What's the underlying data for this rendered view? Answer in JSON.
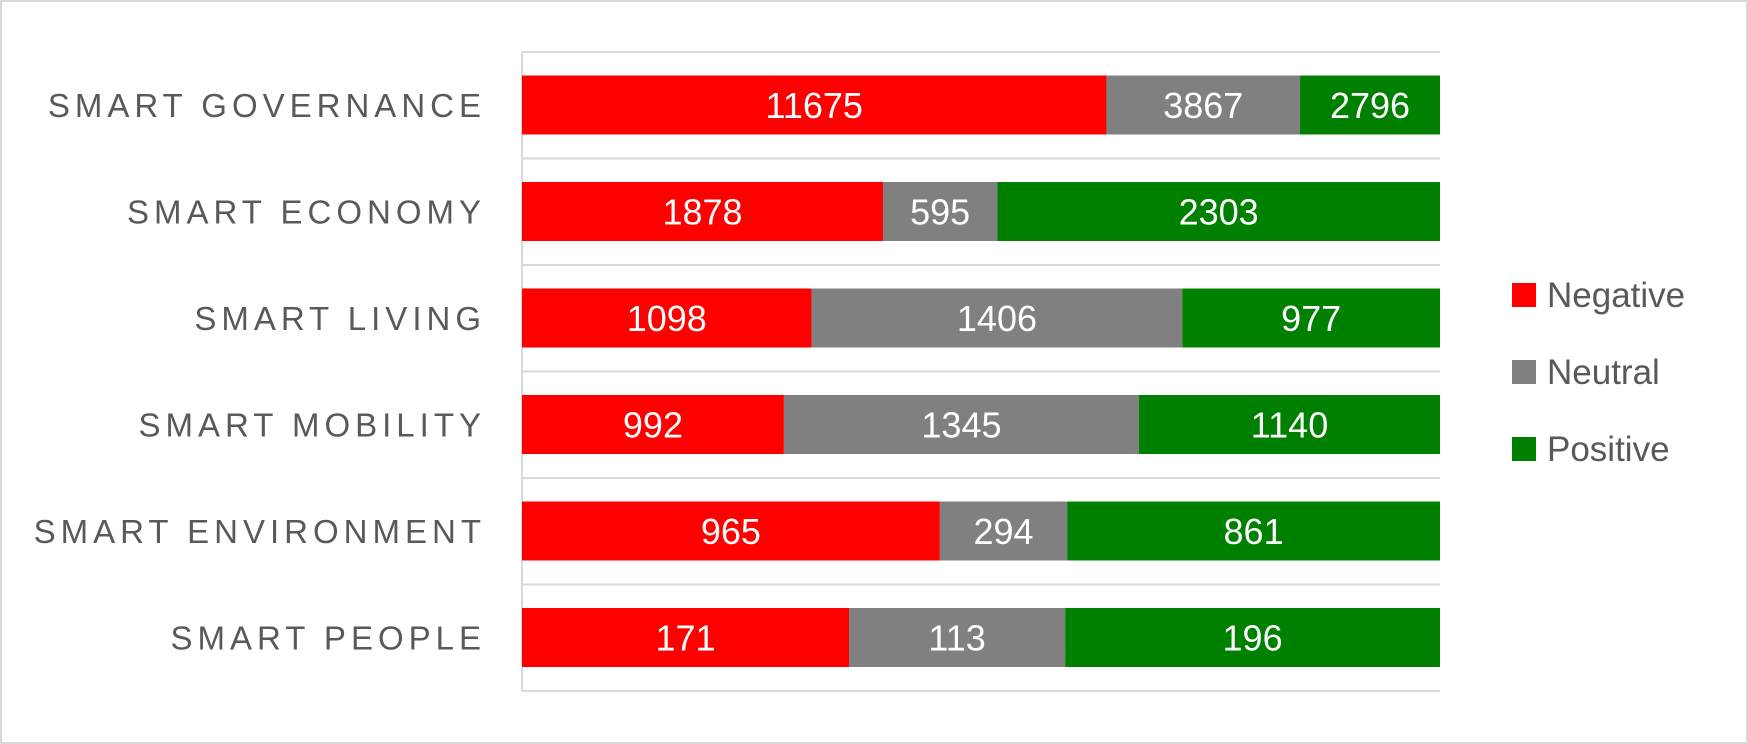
{
  "chart_data": {
    "type": "bar",
    "orientation": "horizontal",
    "stacking": "percent",
    "title": "",
    "xlabel": "",
    "ylabel": "",
    "categories": [
      "SMART GOVERNANCE",
      "SMART ECONOMY",
      "SMART LIVING",
      "SMART MOBILITY",
      "SMART ENVIRONMENT",
      "SMART PEOPLE"
    ],
    "series": [
      {
        "name": "Negative",
        "color": "#ff0000",
        "values": [
          11675,
          1878,
          1098,
          992,
          965,
          171
        ]
      },
      {
        "name": "Neutral",
        "color": "#808080",
        "values": [
          3867,
          595,
          1406,
          1345,
          294,
          113
        ]
      },
      {
        "name": "Positive",
        "color": "#008000",
        "values": [
          2796,
          2303,
          977,
          1140,
          861,
          196
        ]
      }
    ],
    "data_labels": true,
    "grid": true,
    "legend_position": "right"
  }
}
